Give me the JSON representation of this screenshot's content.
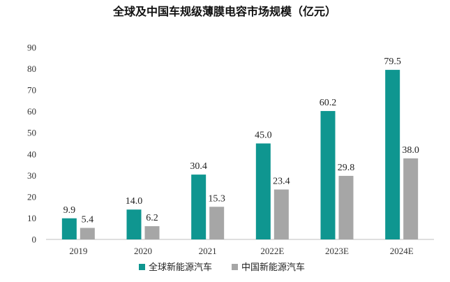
{
  "chart_data": {
    "type": "bar",
    "title": "全球及中国车规级薄膜电容市场规模（亿元）",
    "categories": [
      "2019",
      "2020",
      "2021",
      "2022E",
      "2023E",
      "2024E"
    ],
    "series": [
      {
        "name": "全球新能源汽车",
        "values": [
          9.9,
          14.0,
          30.4,
          45.0,
          60.2,
          79.5
        ],
        "color": "#0f9690"
      },
      {
        "name": "中国新能源汽车",
        "values": [
          5.4,
          6.2,
          15.3,
          23.4,
          29.8,
          38.0
        ],
        "color": "#a6a6a6"
      }
    ],
    "value_labels": [
      [
        "9.9",
        "14.0",
        "30.4",
        "45.0",
        "60.2",
        "79.5"
      ],
      [
        "5.4",
        "6.2",
        "15.3",
        "23.4",
        "29.8",
        "38.0"
      ]
    ],
    "ylim": [
      0,
      90
    ],
    "yticks": [
      0,
      10,
      20,
      30,
      40,
      50,
      60,
      70,
      80,
      90
    ],
    "ytick_labels": [
      "0",
      "10",
      "20",
      "30",
      "40",
      "50",
      "60",
      "70",
      "80",
      "90"
    ],
    "xlabel": "",
    "ylabel": "",
    "grid": false,
    "legend_position": "bottom"
  }
}
